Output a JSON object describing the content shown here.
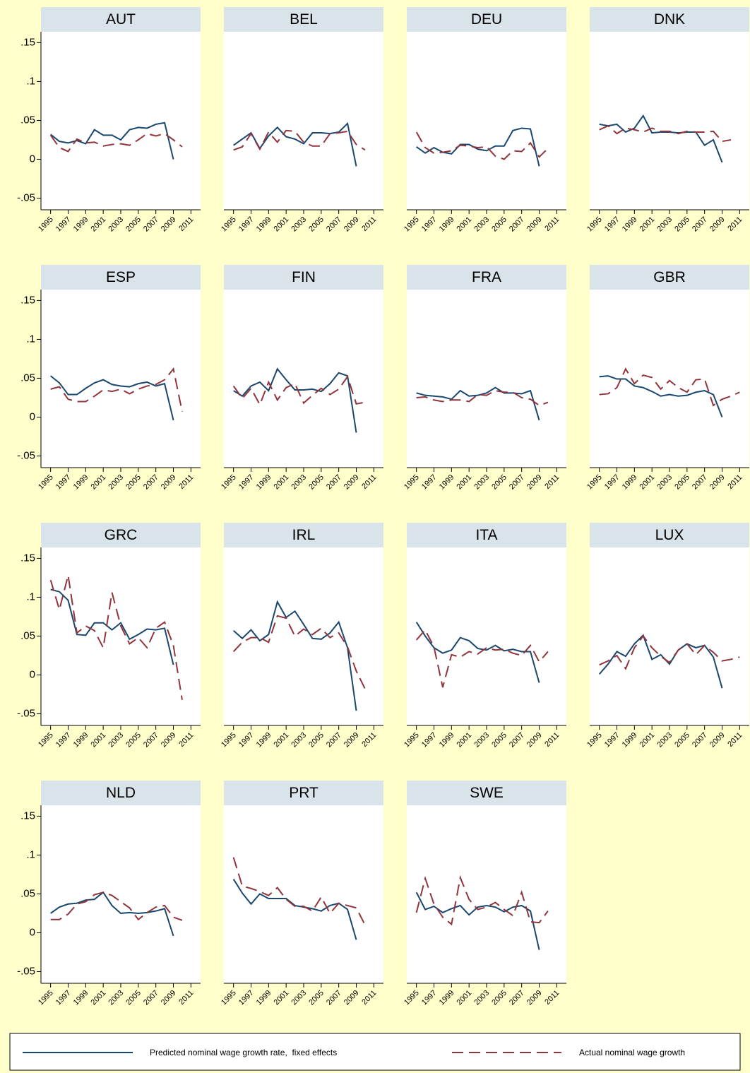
{
  "chart_data": {
    "type": "line",
    "x": [
      1995,
      1996,
      1997,
      1998,
      1999,
      2000,
      2001,
      2002,
      2003,
      2004,
      2005,
      2006,
      2007,
      2008,
      2009,
      2010,
      2011
    ],
    "xlim": [
      1993.9,
      2012.1
    ],
    "xticks": [
      1995,
      1997,
      1999,
      2001,
      2003,
      2005,
      2007,
      2009,
      2011
    ],
    "ylim": [
      -0.065,
      0.164
    ],
    "yticks": [
      {
        "value": 0.15,
        "label": ".15"
      },
      {
        "value": 0.1,
        "label": ".1"
      },
      {
        "value": 0.05,
        "label": ".05"
      },
      0,
      {
        "value": -0.05,
        "label": "-.05"
      }
    ],
    "series": [
      {
        "name": "Predicted nominal wage growth rate,  fixed effects",
        "color": "#1a476f",
        "style": "solid"
      },
      {
        "name": "Actual nominal wage growth",
        "color": "#90353b",
        "style": "dashed"
      }
    ],
    "panels": [
      {
        "title": "AUT",
        "values": [
          [
            0.032,
            0.023,
            0.021,
            0.024,
            0.02,
            0.038,
            0.031,
            0.031,
            0.025,
            0.038,
            0.041,
            0.04,
            0.045,
            0.047,
            0,
            null,
            null
          ],
          [
            0.031,
            0.015,
            0.01,
            0.026,
            0.021,
            0.022,
            0.017,
            0.019,
            0.02,
            0.018,
            0.025,
            0.033,
            0.03,
            0.033,
            0.025,
            0.016,
            null
          ]
        ]
      },
      {
        "title": "BEL",
        "values": [
          [
            0.018,
            0.026,
            0.034,
            0.014,
            0.03,
            0.041,
            0.029,
            0.026,
            0.02,
            0.034,
            0.034,
            0.033,
            0.035,
            0.046,
            -0.009,
            null,
            null
          ],
          [
            0.012,
            0.016,
            0.033,
            0.013,
            0.035,
            0.022,
            0.037,
            0.036,
            0.022,
            0.017,
            0.017,
            0.033,
            0.034,
            0.036,
            0.019,
            0.012,
            null
          ]
        ]
      },
      {
        "title": "DEU",
        "values": [
          [
            0.016,
            0.008,
            0.015,
            0.009,
            0.007,
            0.019,
            0.019,
            0.013,
            0.011,
            0.017,
            0.017,
            0.037,
            0.04,
            0.039,
            -0.009,
            null,
            null
          ],
          [
            0.035,
            0.015,
            0.008,
            0.009,
            0.011,
            0.018,
            0.017,
            0.015,
            0.016,
            0.004,
            0,
            0.011,
            0.01,
            0.021,
            0.003,
            0.014,
            null
          ]
        ]
      },
      {
        "title": "DNK",
        "values": [
          [
            0.045,
            0.043,
            0.045,
            0.035,
            0.04,
            0.056,
            0.034,
            0.035,
            0.035,
            0.034,
            0.035,
            0.035,
            0.018,
            0.025,
            -0.004,
            null,
            null
          ],
          [
            0.038,
            0.043,
            0.033,
            0.04,
            0.038,
            0.035,
            0.04,
            0.036,
            0.036,
            0.033,
            0.036,
            0.035,
            0.035,
            0.036,
            0.023,
            0.025,
            null
          ]
        ]
      },
      {
        "title": "ESP",
        "values": [
          [
            0.053,
            0.044,
            0.029,
            0.029,
            0.037,
            0.044,
            0.048,
            0.042,
            0.04,
            0.039,
            0.043,
            0.045,
            0.04,
            0.043,
            -0.004,
            null,
            null
          ],
          [
            0.036,
            0.039,
            0.023,
            0.02,
            0.02,
            0.027,
            0.035,
            0.033,
            0.036,
            0.03,
            0.036,
            0.04,
            0.042,
            0.048,
            0.062,
            0.007,
            null
          ]
        ]
      },
      {
        "title": "FIN",
        "values": [
          [
            0.034,
            0.027,
            0.04,
            0.045,
            0.034,
            0.062,
            0.048,
            0.035,
            0.035,
            0.036,
            0.033,
            0.043,
            0.057,
            0.053,
            -0.02,
            null,
            null
          ],
          [
            0.04,
            0.024,
            0.037,
            0.016,
            0.045,
            0.022,
            0.038,
            0.043,
            0.018,
            0.028,
            0.037,
            0.029,
            0.036,
            0.052,
            0.017,
            0.019,
            null
          ]
        ]
      },
      {
        "title": "FRA",
        "values": [
          [
            0.031,
            0.028,
            0.027,
            0.026,
            0.023,
            0.034,
            0.027,
            0.028,
            0.031,
            0.038,
            0.031,
            0.031,
            0.03,
            0.034,
            -0.004,
            null,
            null
          ],
          [
            0.025,
            0.026,
            0.022,
            0.02,
            0.022,
            0.022,
            0.02,
            0.029,
            0.028,
            0.034,
            0.032,
            0.032,
            0.025,
            0.023,
            0.015,
            0.019,
            null
          ]
        ]
      },
      {
        "title": "GBR",
        "values": [
          [
            0.052,
            0.053,
            0.049,
            0.049,
            0.04,
            0.038,
            0.033,
            0.027,
            0.029,
            0.027,
            0.028,
            0.032,
            0.034,
            0.029,
            0,
            null,
            null
          ],
          [
            0.029,
            0.03,
            0.038,
            0.062,
            0.043,
            0.054,
            0.051,
            0.036,
            0.047,
            0.038,
            0.032,
            0.048,
            0.049,
            0.015,
            0.023,
            0.027,
            0.032
          ]
        ]
      },
      {
        "title": "GRC",
        "values": [
          [
            0.11,
            0.107,
            0.096,
            0.052,
            0.051,
            0.067,
            0.067,
            0.058,
            0.067,
            0.046,
            0.052,
            0.059,
            0.058,
            0.06,
            0.013,
            null,
            null
          ],
          [
            0.122,
            0.084,
            0.128,
            0.054,
            0.063,
            0.057,
            0.035,
            0.106,
            0.063,
            0.04,
            0.048,
            0.035,
            0.06,
            0.068,
            0.038,
            -0.032,
            null
          ]
        ]
      },
      {
        "title": "IRL",
        "values": [
          [
            0.057,
            0.047,
            0.058,
            0.044,
            0.052,
            0.094,
            0.074,
            0.082,
            0.065,
            0.047,
            0.046,
            0.054,
            0.068,
            0.035,
            -0.046,
            null,
            null
          ],
          [
            0.03,
            0.042,
            0.048,
            0.048,
            0.042,
            0.076,
            0.073,
            0.05,
            0.059,
            0.052,
            0.06,
            0.048,
            0.054,
            0.036,
            0.005,
            -0.018,
            null
          ]
        ]
      },
      {
        "title": "ITA",
        "values": [
          [
            0.068,
            0.05,
            0.035,
            0.028,
            0.032,
            0.048,
            0.044,
            0.034,
            0.032,
            0.038,
            0.031,
            0.033,
            0.03,
            0.03,
            -0.01,
            null,
            null
          ],
          [
            0.045,
            0.058,
            0.036,
            -0.016,
            0.026,
            0.023,
            0.03,
            0.027,
            0.035,
            0.032,
            0.033,
            0.028,
            0.025,
            0.038,
            0.017,
            0.03,
            null
          ]
        ]
      },
      {
        "title": "LUX",
        "values": [
          [
            0.001,
            0.014,
            0.03,
            0.024,
            0.04,
            0.051,
            0.02,
            0.026,
            0.014,
            0.032,
            0.04,
            0.035,
            0.038,
            0.023,
            -0.017,
            null,
            null
          ],
          [
            0.013,
            0.018,
            0.025,
            0.008,
            0.035,
            0.05,
            0.035,
            0.024,
            0.016,
            0.032,
            0.04,
            0.026,
            0.038,
            0.029,
            0.018,
            0.02,
            0.023
          ]
        ]
      },
      {
        "title": "NLD",
        "values": [
          [
            0.025,
            0.033,
            0.037,
            0.038,
            0.042,
            0.043,
            0.052,
            0.035,
            0.025,
            0.026,
            0.025,
            0.026,
            0.028,
            0.031,
            -0.004,
            null,
            null
          ],
          [
            0.017,
            0.017,
            0.024,
            0.037,
            0.04,
            0.049,
            0.052,
            0.048,
            0.04,
            0.032,
            0.017,
            0.026,
            0.033,
            0.035,
            0.02,
            0.016,
            null
          ]
        ]
      },
      {
        "title": "PRT",
        "values": [
          [
            0.069,
            0.051,
            0.037,
            0.05,
            0.044,
            0.044,
            0.044,
            0.035,
            0.033,
            0.031,
            0.028,
            0.035,
            0.038,
            0.03,
            -0.009,
            null,
            null
          ],
          [
            0.097,
            0.06,
            0.057,
            0.053,
            0.048,
            0.058,
            0.043,
            0.034,
            0.034,
            0.028,
            0.046,
            0.025,
            0.038,
            0.035,
            0.032,
            0.01,
            null
          ]
        ]
      },
      {
        "title": "SWE",
        "values": [
          [
            0.052,
            0.03,
            0.034,
            0.026,
            0.031,
            0.035,
            0.023,
            0.033,
            0.035,
            0.033,
            0.027,
            0.033,
            0.035,
            0.028,
            -0.022,
            null,
            null
          ],
          [
            0.026,
            0.07,
            0.037,
            0.02,
            0.011,
            0.071,
            0.043,
            0.03,
            0.033,
            0.039,
            0.03,
            0.022,
            0.052,
            0.014,
            0.013,
            0.028,
            null
          ]
        ]
      }
    ]
  }
}
